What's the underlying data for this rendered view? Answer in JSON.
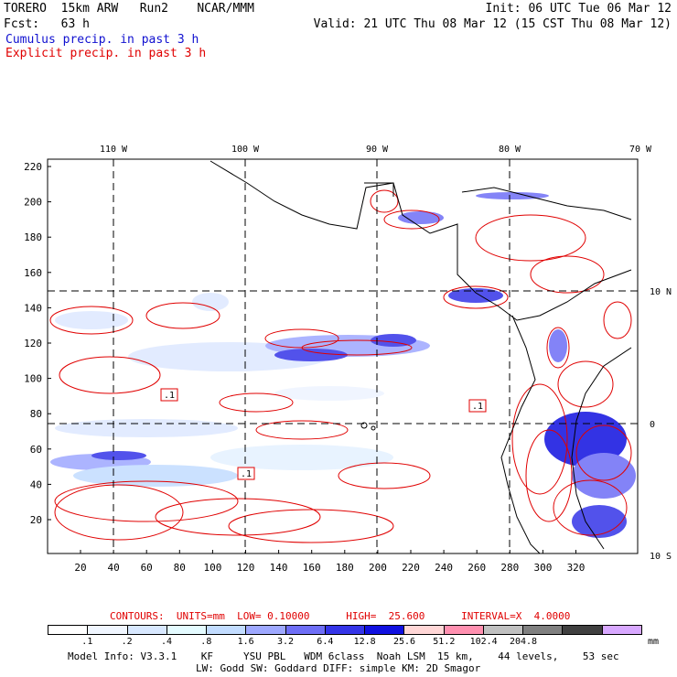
{
  "header": {
    "model_line": "TORERO  15km ARW   Run2    NCAR/MMM",
    "init_line": "Init: 06 UTC Tue 06 Mar 12",
    "fcst_line": "Fcst:   63 h",
    "valid_line": "Valid: 21 UTC Thu 08 Mar 12 (15 CST Thu 08 Mar 12)",
    "cumulus_label": "Cumulus precip. in past 3 h",
    "explicit_label": "Explicit precip. in past 3 h"
  },
  "colors": {
    "cumulus": "#1010d0",
    "explicit": "#e00000",
    "coast": "#000000"
  },
  "map": {
    "top_lon_labels": [
      "110 W",
      "100 W",
      "90 W",
      "80 W",
      "70 W"
    ],
    "right_lat_labels": [
      "10 N",
      "0",
      "10 S"
    ],
    "y_tick_labels": [
      "220",
      "200",
      "180",
      "160",
      "140",
      "120",
      "100",
      "80",
      "60",
      "40",
      "20"
    ],
    "x_tick_labels": [
      "20",
      "40",
      "60",
      "80",
      "100",
      "120",
      "140",
      "160",
      "180",
      "200",
      "220",
      "240",
      "260",
      "280",
      "300",
      "320"
    ],
    "contour_labels": [
      ".1",
      ".1",
      ".1"
    ]
  },
  "contours_line": {
    "title": "CONTOURS:  UNITS=mm  LOW= 0.10000      HIGH=  25.600      INTERVAL=X  4.0000"
  },
  "legend": {
    "colors": [
      "#ffffff",
      "#f0f6ff",
      "#d8e8ff",
      "#e4fbff",
      "#c2dcff",
      "#9ea8ff",
      "#6e6ef6",
      "#3434e8",
      "#1010e0",
      "#ffd6d6",
      "#ff90b0",
      "#c0c0c0",
      "#808080",
      "#404040",
      "#d8a8ff"
    ],
    "labels": [
      ".1",
      ".2",
      ".4",
      ".8",
      "1.6",
      "3.2",
      "6.4",
      "12.8",
      "25.6",
      "51.2",
      "102.4",
      "204.8"
    ],
    "unit": "mm"
  },
  "footer": {
    "line1": "Model Info: V3.3.1    KF     YSU PBL   WDM 6class  Noah LSM  15 km,    44 levels,    53 sec",
    "line2": "LW: Godd SW: Goddard DIFF: simple KM: 2D Smagor"
  }
}
